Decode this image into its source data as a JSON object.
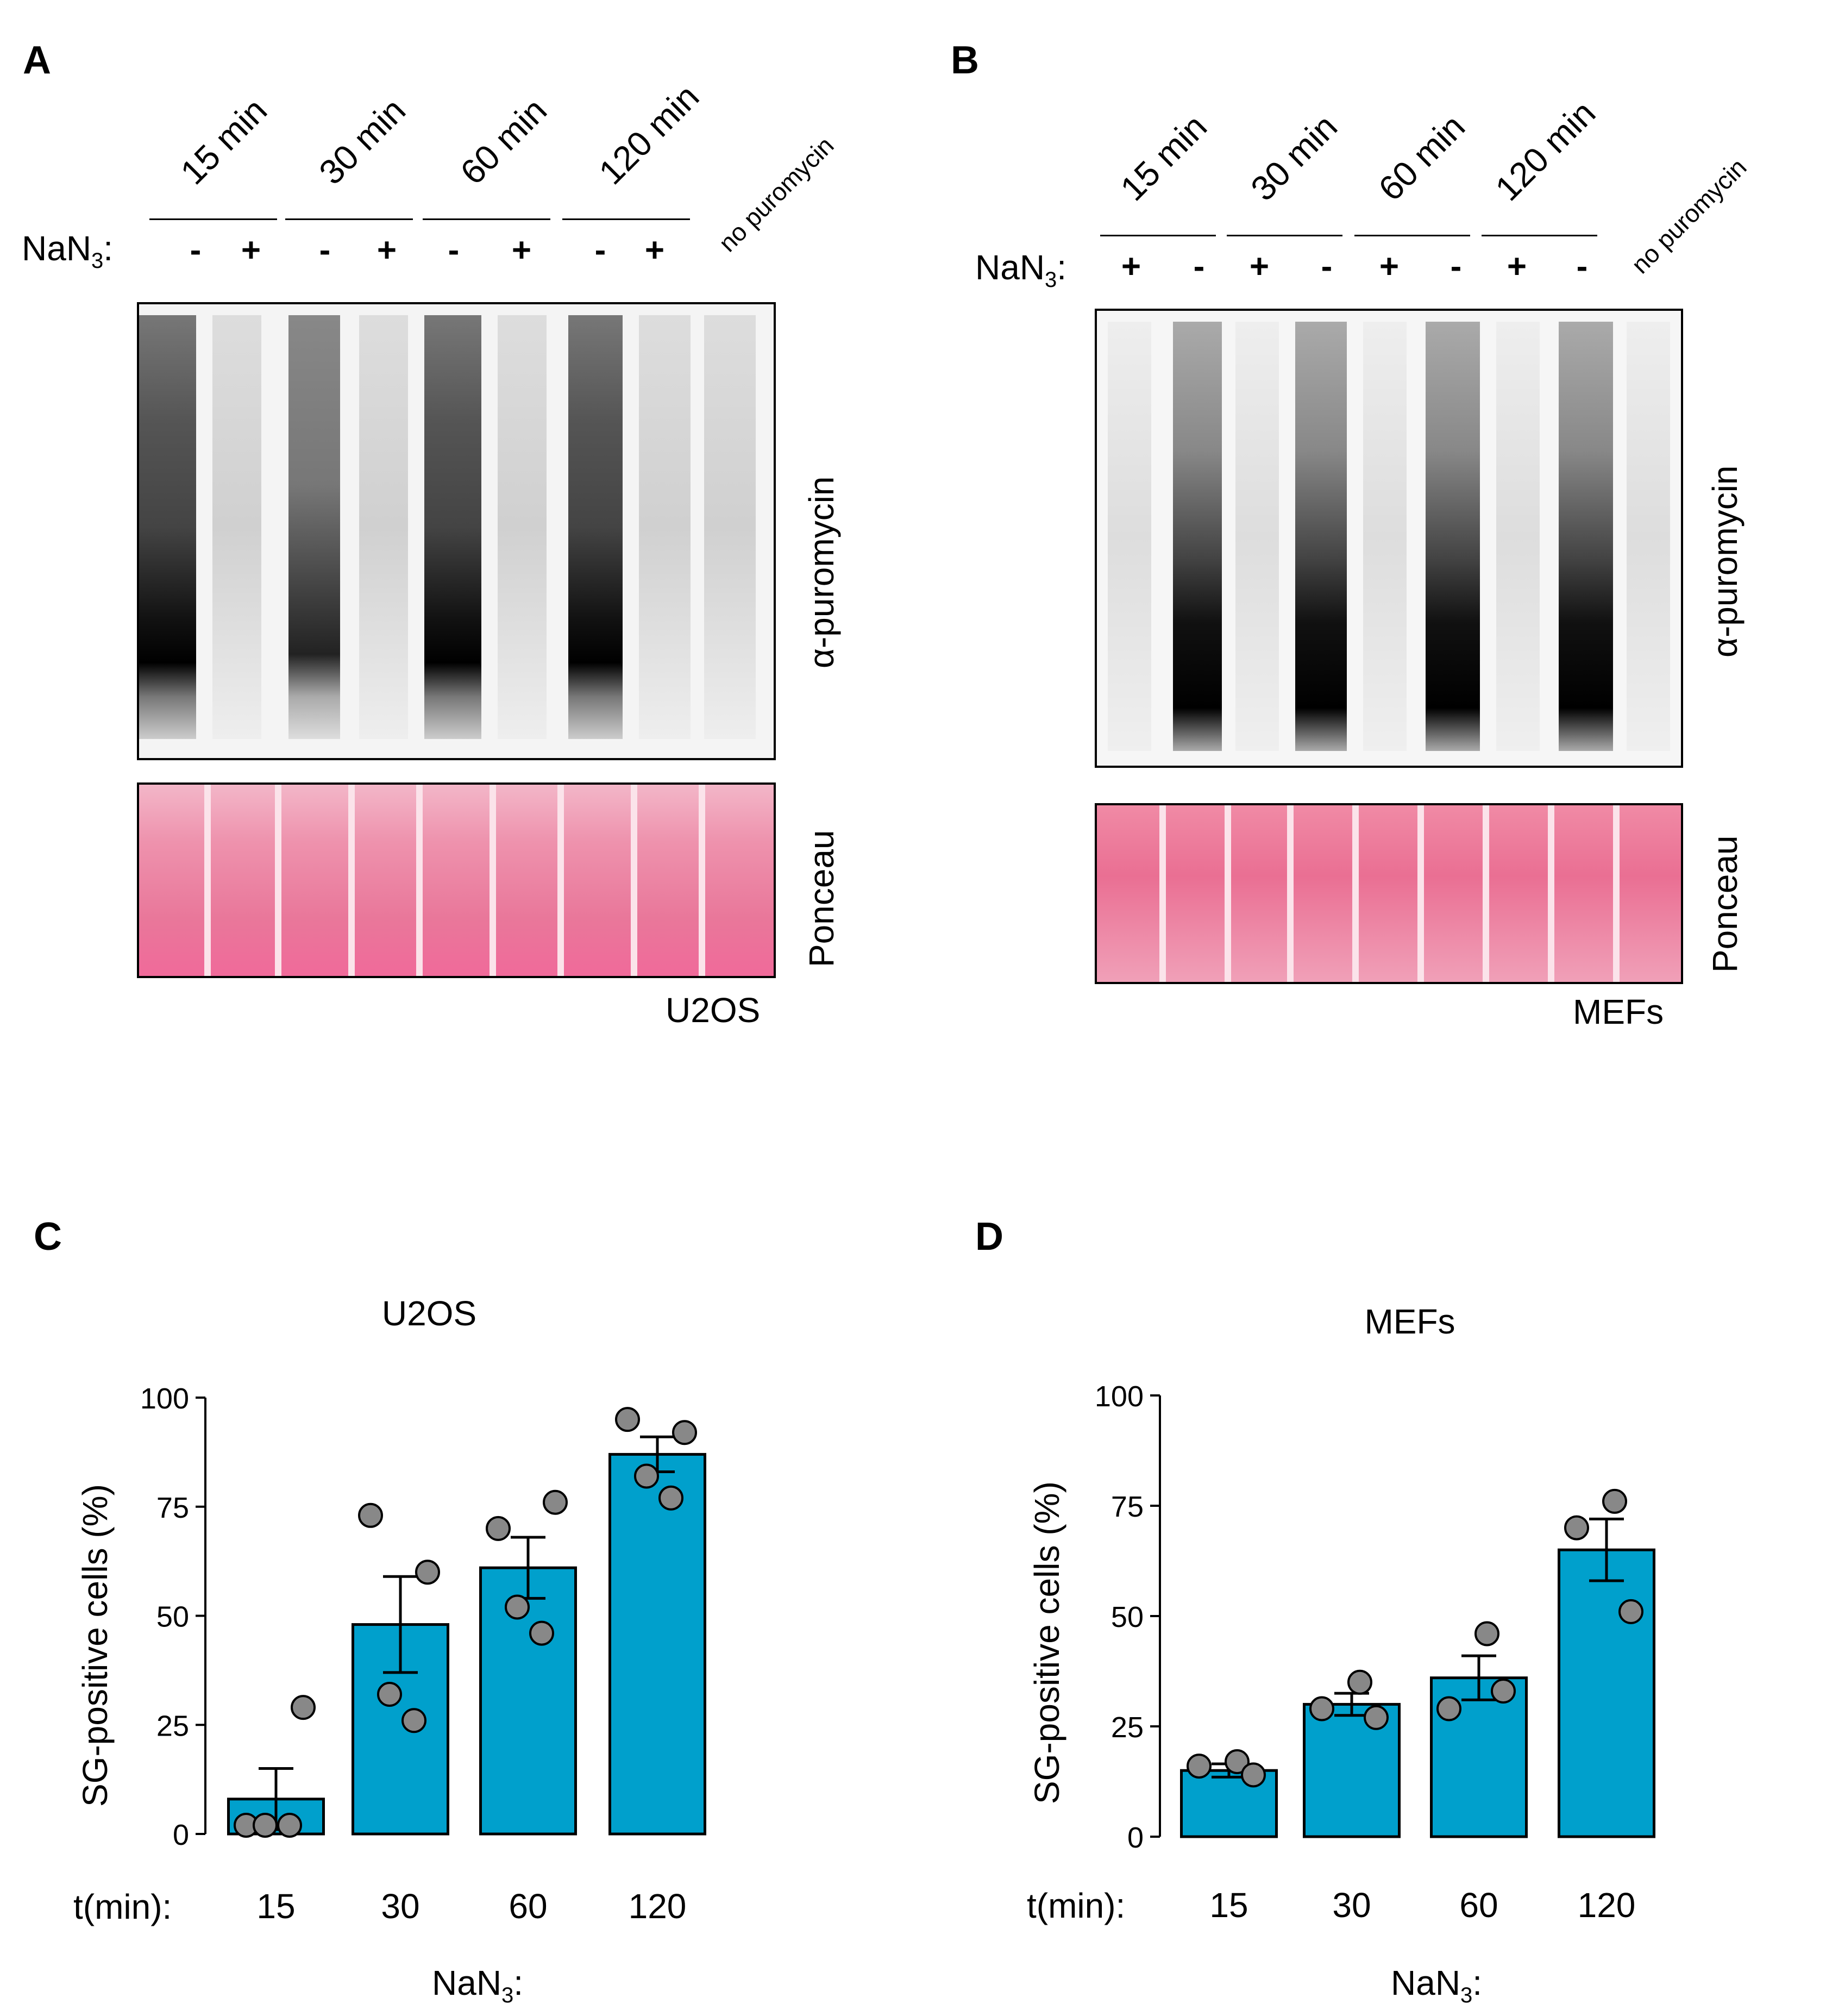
{
  "panels": {
    "a": {
      "letter": "A",
      "cell_line": "U2OS",
      "blot_label": "α-puromycin",
      "stain_label": "Ponceau",
      "time_labels": [
        "15 min",
        "30 min",
        "60 min",
        "120 min"
      ],
      "no_puro": "no puromycin",
      "nan_prefix": "NaN",
      "nan_sub": "3",
      "nan_suffix": ":",
      "signs": [
        "-",
        "+",
        "-",
        "+",
        "-",
        "+",
        "-",
        "+"
      ]
    },
    "b": {
      "letter": "B",
      "cell_line": "MEFs",
      "blot_label": "α-puromycin",
      "stain_label": "Ponceau",
      "time_labels": [
        "15 min",
        "30 min",
        "60 min",
        "120 min"
      ],
      "no_puro": "no puromycin",
      "nan_prefix": "NaN",
      "nan_sub": "3",
      "nan_suffix": ":",
      "signs": [
        "+",
        "-",
        "+",
        "-",
        "+",
        "-",
        "+",
        "-"
      ]
    },
    "c": {
      "letter": "C"
    },
    "d": {
      "letter": "D"
    }
  },
  "chart_data": [
    {
      "type": "bar",
      "title": "U2OS",
      "ylabel": "SG-positive cells (%)",
      "xlabel_prefix": "t(min):",
      "xaxis_title_prefix": "NaN",
      "xaxis_title_sub": "3",
      "xaxis_title_suffix": ":",
      "categories": [
        "15",
        "30",
        "60",
        "120"
      ],
      "values": [
        8,
        48,
        61,
        87
      ],
      "errors": [
        7,
        11,
        7,
        4
      ],
      "points": [
        [
          2,
          29,
          2,
          2
        ],
        [
          73,
          60,
          32,
          26
        ],
        [
          70,
          76,
          52,
          46
        ],
        [
          95,
          92,
          82,
          77
        ]
      ],
      "ylim": [
        0,
        100
      ],
      "yticks": [
        "0",
        "25",
        "50",
        "75",
        "100"
      ],
      "bar_color": "#00a0cc",
      "point_color": "#888888"
    },
    {
      "type": "bar",
      "title": "MEFs",
      "ylabel": "SG-positive cells (%)",
      "xlabel_prefix": "t(min):",
      "xaxis_title_prefix": "NaN",
      "xaxis_title_sub": "3",
      "xaxis_title_suffix": ":",
      "categories": [
        "15",
        "30",
        "60",
        "120"
      ],
      "values": [
        15,
        30,
        36,
        65
      ],
      "errors": [
        1.5,
        2.5,
        5,
        7
      ],
      "points": [
        [
          16,
          17,
          14
        ],
        [
          29,
          35,
          27
        ],
        [
          29,
          46,
          33
        ],
        [
          70,
          76,
          51
        ]
      ],
      "ylim": [
        0,
        100
      ],
      "yticks": [
        "0",
        "25",
        "50",
        "75",
        "100"
      ],
      "bar_color": "#00a0cc",
      "point_color": "#888888"
    }
  ]
}
